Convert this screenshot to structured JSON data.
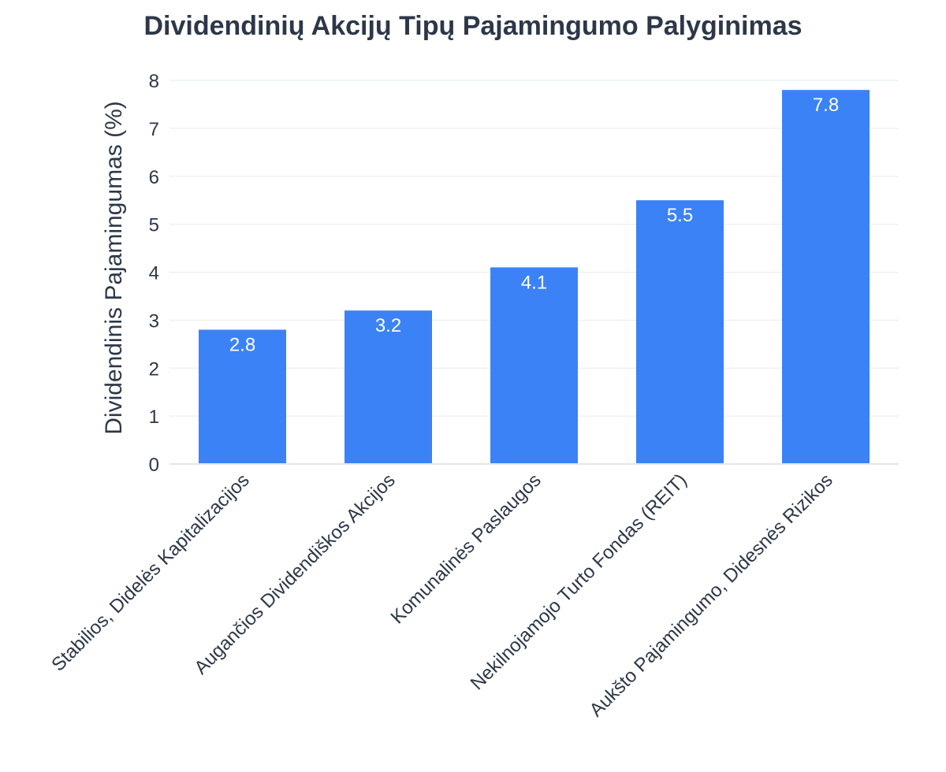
{
  "chart_data": {
    "type": "bar",
    "title": "Dividendinių Akcijų Tipų Pajamingumo Palyginimas",
    "xlabel": "",
    "ylabel": "Dividendinis Pajamingumas (%)",
    "categories": [
      "Stabilios, Didelės Kapitalizacijos",
      "Augančios Dividendiškos Akcijos",
      "Komunalinės Paslaugos",
      "Nekilnojamojo Turto Fondas (REIT)",
      "Aukšto Pajamingumo, Didesnės Rizikos"
    ],
    "values": [
      2.8,
      3.2,
      4.1,
      5.5,
      7.8
    ],
    "value_labels": [
      "2.8",
      "3.2",
      "4.1",
      "5.5",
      "7.8"
    ],
    "ylim": [
      0,
      8
    ],
    "yticks": [
      "0",
      "1",
      "2",
      "3",
      "4",
      "5",
      "6",
      "7",
      "8"
    ],
    "grid": true,
    "bar_color": "#3b82f6",
    "text_color": "#2d3748",
    "data_label_color": "#ffffff"
  }
}
